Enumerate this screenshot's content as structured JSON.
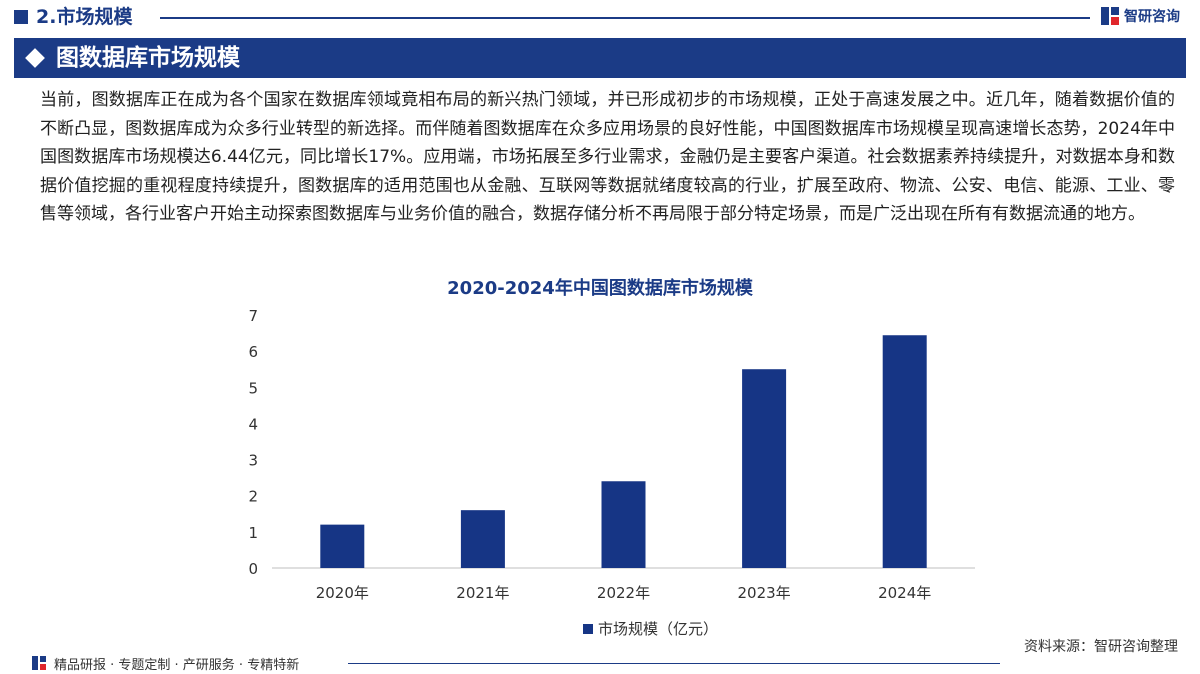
{
  "header": {
    "section_title": "2.市场规模",
    "logo_text": "智研咨询"
  },
  "banner": {
    "title": "图数据库市场规模"
  },
  "paragraph": "当前，图数据库正在成为各个国家在数据库领域竟相布局的新兴热门领域，并已形成初步的市场规模，正处于高速发展之中。近几年，随着数据价值的不断凸显，图数据库成为众多行业转型的新选择。而伴随着图数据库在众多应用场景的良好性能，中国图数据库市场规模呈现高速增长态势，2024年中国图数据库市场规模达6.44亿元，同比增长17%。应用端，市场拓展至多行业需求，金融仍是主要客户渠道。社会数据素养持续提升，对数据本身和数据价值挖掘的重视程度持续提升，图数据库的适用范围也从金融、互联网等数据就绪度较高的行业，扩展至政府、物流、公安、电信、能源、工业、零售等领域，各行业客户开始主动探索图数据库与业务价值的融合，数据存储分析不再局限于部分特定场景，而是广泛出现在所有有数据流通的地方。",
  "chart_data": {
    "type": "bar",
    "title": "2020-2024年中国图数据库市场规模",
    "categories": [
      "2020年",
      "2021年",
      "2022年",
      "2023年",
      "2024年"
    ],
    "series": [
      {
        "name": "市场规模（亿元）",
        "values": [
          1.2,
          1.6,
          2.4,
          5.5,
          6.44
        ]
      }
    ],
    "ylim": [
      0,
      7
    ],
    "yticks": [
      "0",
      "1",
      "2",
      "3",
      "4",
      "5",
      "6",
      "7"
    ],
    "grid": false,
    "legend": "bottom",
    "colors": {
      "bar": "#163585",
      "axis": "#bfbfbf",
      "text": "#333333"
    }
  },
  "source": "资料来源：智研咨询整理",
  "footer": {
    "text": "精品研报 · 专题定制 · 产研服务 · 专精特新"
  },
  "colors": {
    "brand": "#1b3b86"
  }
}
